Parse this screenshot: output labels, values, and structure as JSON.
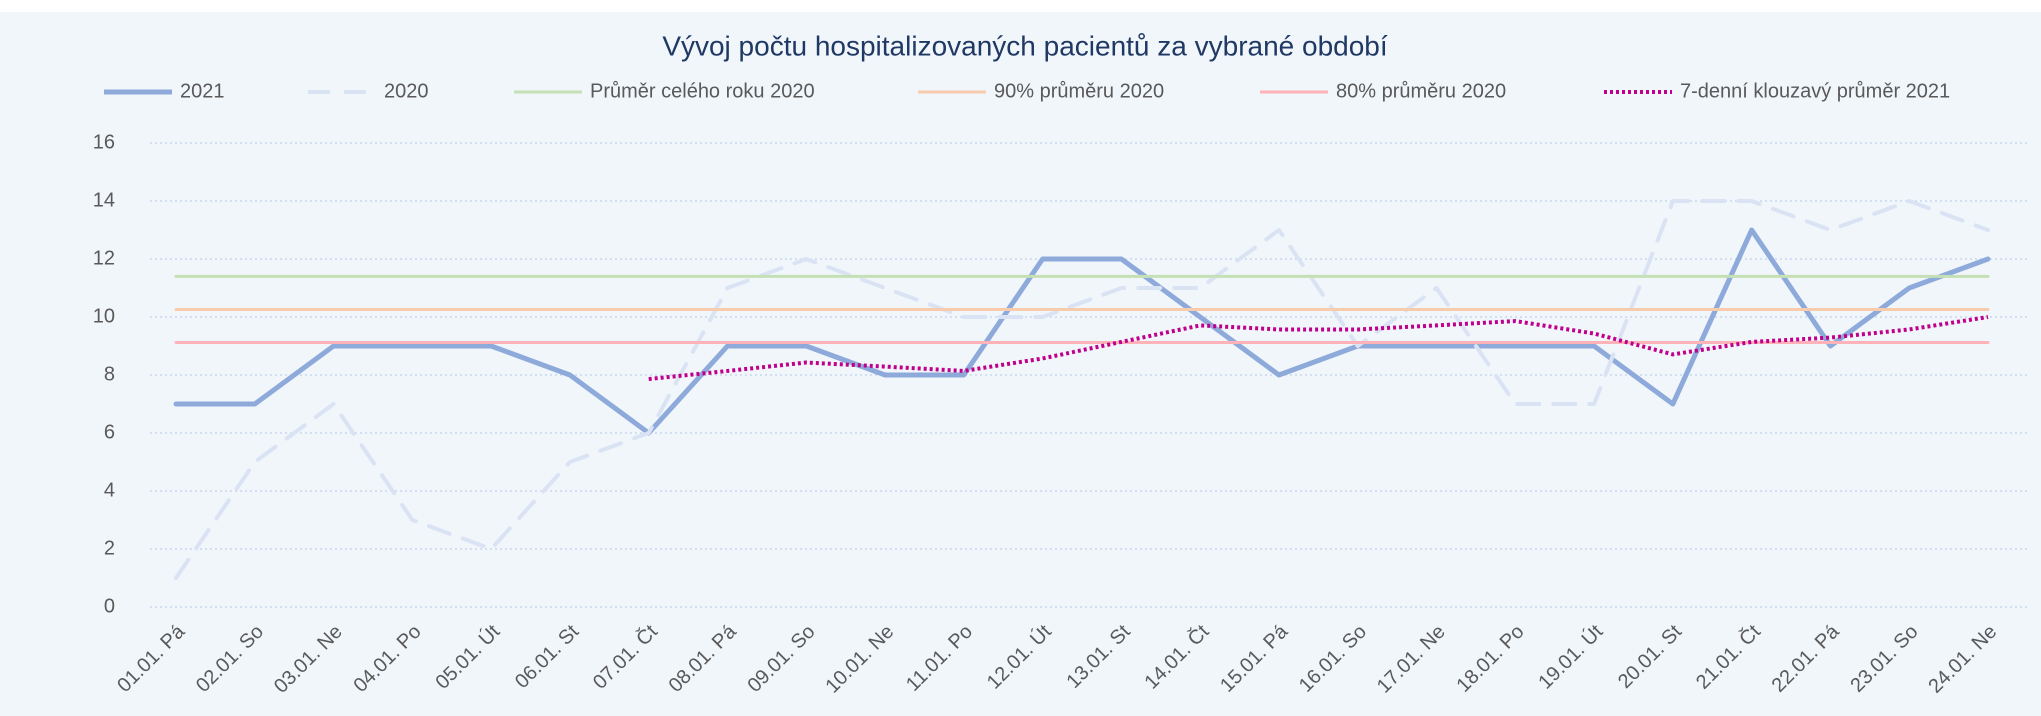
{
  "chart_data": {
    "type": "line",
    "title": "Vývoj počtu hospitalizovaných pacientů za vybrané období",
    "categories": [
      "01.01. Pá",
      "02.01. So",
      "03.01. Ne",
      "04.01. Po",
      "05.01. Út",
      "06.01. St",
      "07.01. Čt",
      "08.01. Pá",
      "09.01. So",
      "10.01. Ne",
      "11.01. Po",
      "12.01. Út",
      "13.01. St",
      "14.01. Čt",
      "15.01. Pá",
      "16.01. So",
      "17.01. Ne",
      "18.01. Po",
      "19.01. Út",
      "20.01. St",
      "21.01. Čt",
      "22.01. Pá",
      "23.01. So",
      "24.01. Ne"
    ],
    "series": [
      {
        "name": "2021",
        "color": "#8eaadb",
        "dash": "solid",
        "width": 5,
        "values": [
          7,
          7,
          9,
          9,
          9,
          8,
          6,
          9,
          9,
          8,
          8,
          12,
          12,
          10,
          8,
          9,
          9,
          9,
          9,
          7,
          13,
          9,
          11,
          12
        ]
      },
      {
        "name": "2020",
        "color": "#dae3f3",
        "dash": "dashed",
        "width": 4,
        "values": [
          1,
          5,
          7,
          3,
          2,
          5,
          6,
          11,
          12,
          11,
          10,
          10,
          11,
          11,
          13,
          9,
          11,
          7,
          7,
          14,
          14,
          13,
          14,
          13
        ]
      },
      {
        "name": "Průměr celého roku 2020",
        "color": "#c5e0b4",
        "dash": "solid",
        "width": 3,
        "values": [
          11.4,
          11.4,
          11.4,
          11.4,
          11.4,
          11.4,
          11.4,
          11.4,
          11.4,
          11.4,
          11.4,
          11.4,
          11.4,
          11.4,
          11.4,
          11.4,
          11.4,
          11.4,
          11.4,
          11.4,
          11.4,
          11.4,
          11.4,
          11.4
        ]
      },
      {
        "name": "90% průměru 2020",
        "color": "#f8cbad",
        "dash": "solid",
        "width": 3,
        "values": [
          10.26,
          10.26,
          10.26,
          10.26,
          10.26,
          10.26,
          10.26,
          10.26,
          10.26,
          10.26,
          10.26,
          10.26,
          10.26,
          10.26,
          10.26,
          10.26,
          10.26,
          10.26,
          10.26,
          10.26,
          10.26,
          10.26,
          10.26,
          10.26
        ]
      },
      {
        "name": "80% průměru 2020",
        "color": "#ffb3b8",
        "dash": "solid",
        "width": 3,
        "values": [
          9.12,
          9.12,
          9.12,
          9.12,
          9.12,
          9.12,
          9.12,
          9.12,
          9.12,
          9.12,
          9.12,
          9.12,
          9.12,
          9.12,
          9.12,
          9.12,
          9.12,
          9.12,
          9.12,
          9.12,
          9.12,
          9.12,
          9.12,
          9.12
        ]
      },
      {
        "name": "7-denní klouzavý průměr 2021",
        "color": "#c0008a",
        "dash": "dotted",
        "width": 4,
        "values": [
          null,
          null,
          null,
          null,
          null,
          null,
          7.86,
          8.14,
          8.43,
          8.29,
          8.14,
          8.57,
          9.14,
          9.71,
          9.57,
          9.57,
          9.71,
          9.86,
          9.43,
          8.71,
          9.14,
          9.29,
          9.57,
          10
        ]
      }
    ],
    "ylim": [
      0,
      16
    ],
    "yticks": [
      0,
      2,
      4,
      6,
      8,
      10,
      12,
      14,
      16
    ],
    "grid": true,
    "legend": "top"
  }
}
